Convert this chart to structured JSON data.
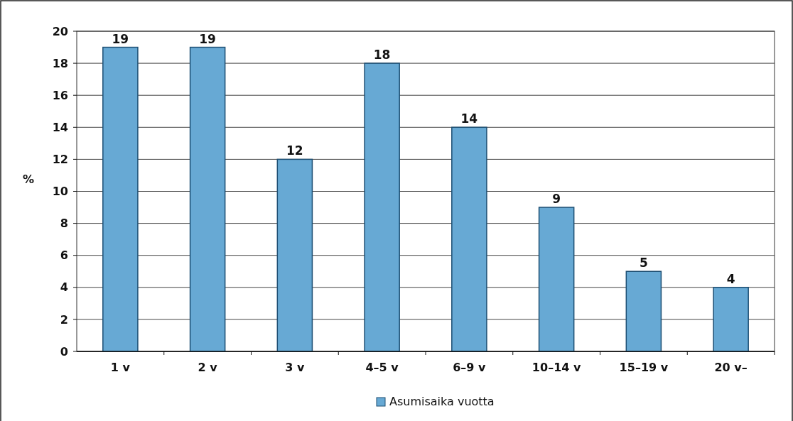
{
  "chart_data": {
    "type": "bar",
    "ylabel": "%",
    "categories": [
      "1 v",
      "2 v",
      "3 v",
      "4–5 v",
      "6–9 v",
      "10–14 v",
      "15–19 v",
      "20 v–"
    ],
    "series": [
      {
        "name": "Asumisaika vuotta",
        "color": "#67a9d4",
        "values": [
          19,
          19,
          12,
          18,
          14,
          9,
          5,
          4
        ]
      }
    ],
    "ylim": [
      0,
      20
    ],
    "yticks": [
      0,
      2,
      4,
      6,
      8,
      10,
      12,
      14,
      16,
      18,
      20
    ],
    "grid": "y",
    "legend": "bottom",
    "data_labels": true
  }
}
